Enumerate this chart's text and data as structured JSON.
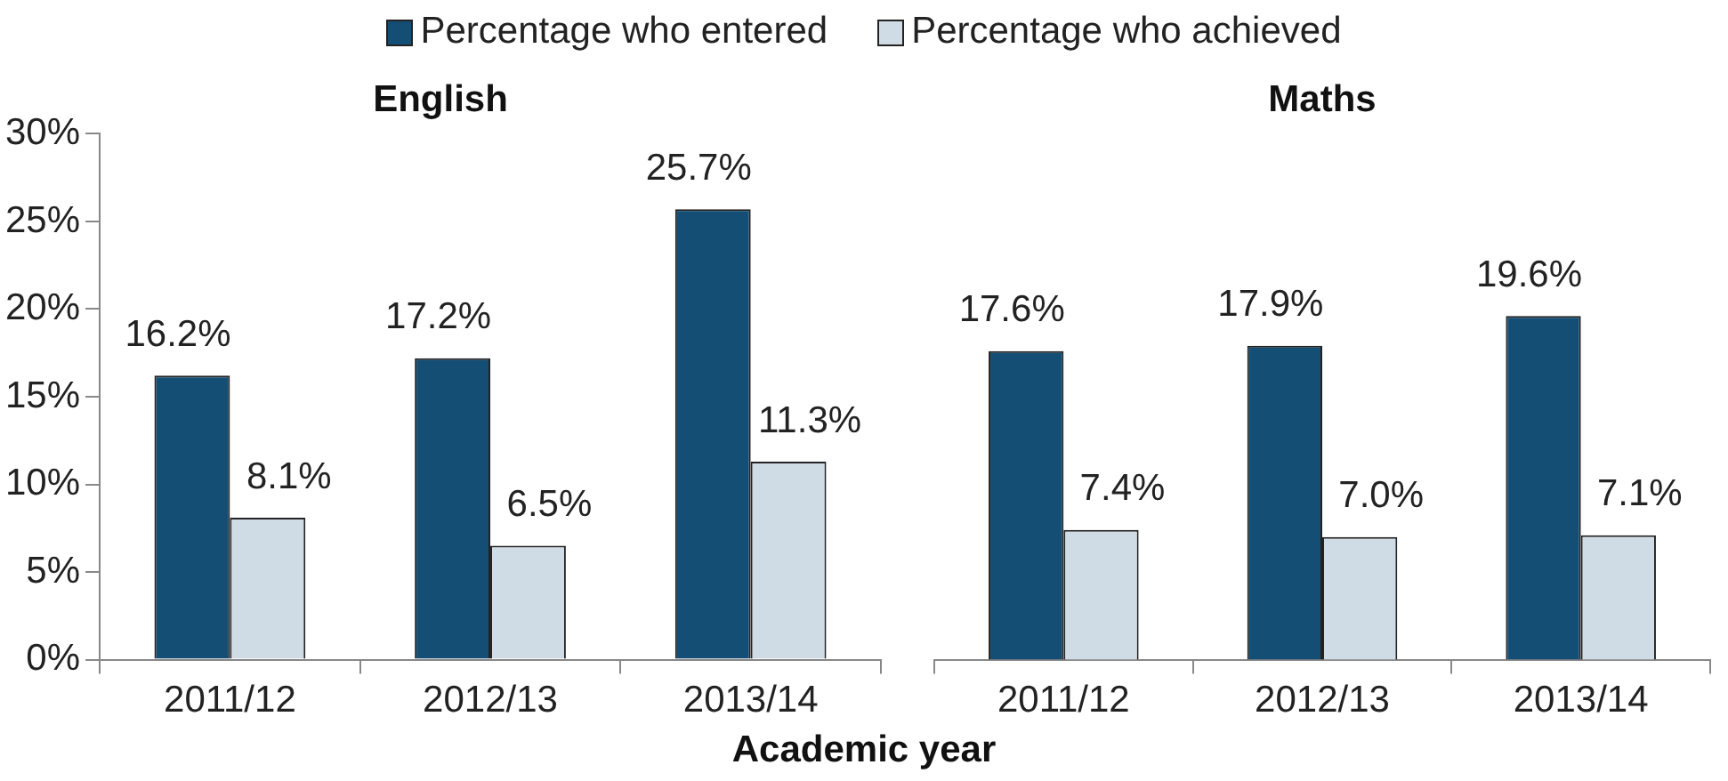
{
  "chart_data": [
    {
      "type": "bar",
      "title": "English",
      "xlabel": "Academic year",
      "categories": [
        "2011/12",
        "2012/13",
        "2013/14"
      ],
      "series": [
        {
          "name": "Percentage who entered",
          "color": "#144e74",
          "values": [
            16.2,
            17.2,
            25.7
          ],
          "value_labels": [
            "16.2%",
            "17.2%",
            "25.7%"
          ]
        },
        {
          "name": "Percentage who achieved",
          "color": "#d0dce5",
          "values": [
            8.1,
            6.5,
            11.3
          ],
          "value_labels": [
            "8.1%",
            "6.5%",
            "11.3%"
          ]
        }
      ],
      "ylim": [
        0,
        30
      ],
      "yticks": [
        {
          "value": 0,
          "label": "0%"
        },
        {
          "value": 5,
          "label": "5%"
        },
        {
          "value": 10,
          "label": "10%"
        },
        {
          "value": 15,
          "label": "15%"
        },
        {
          "value": 20,
          "label": "20%"
        },
        {
          "value": 25,
          "label": "25%"
        },
        {
          "value": 30,
          "label": "30%"
        }
      ],
      "grid": false,
      "legend": "top"
    },
    {
      "type": "bar",
      "title": "Maths",
      "categories": [
        "2011/12",
        "2012/13",
        "2013/14"
      ],
      "series": [
        {
          "color": "#144e74",
          "values": [
            17.6,
            17.9,
            19.6
          ],
          "value_labels": [
            "17.6%",
            "17.9%",
            "19.6%"
          ]
        },
        {
          "color": "#d0dce5",
          "values": [
            7.4,
            7.0,
            7.1
          ],
          "value_labels": [
            "7.4%",
            "7.0%",
            "7.1%"
          ]
        }
      ],
      "ylim": [
        0,
        30
      ],
      "grid": false,
      "tick_labels": "x"
    }
  ]
}
